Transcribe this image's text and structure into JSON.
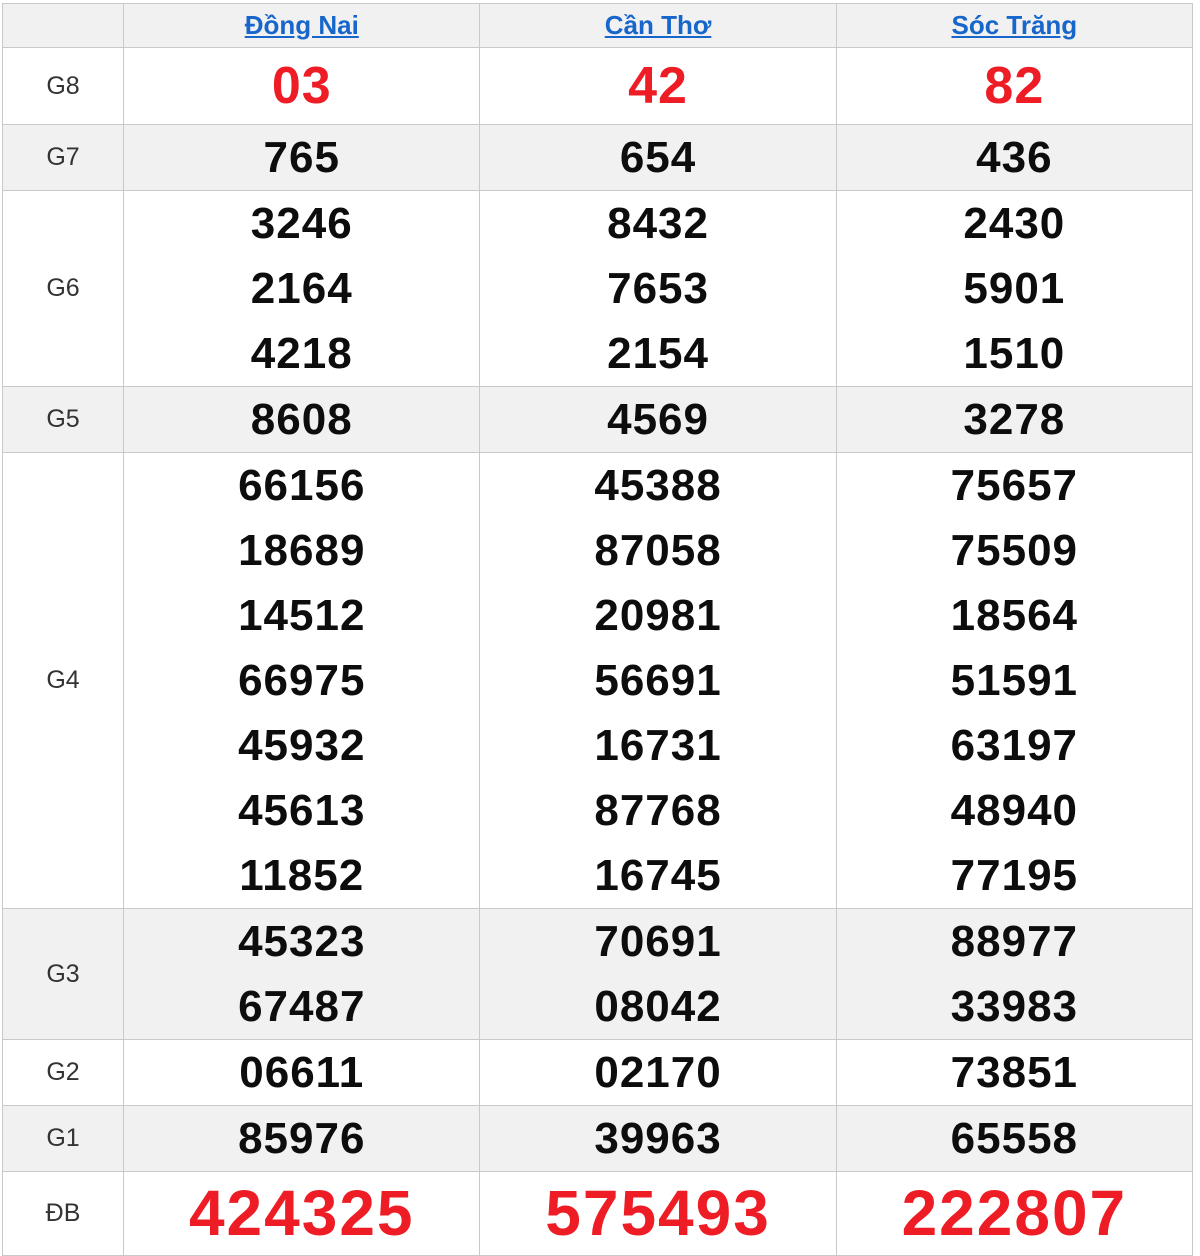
{
  "table": {
    "columns": [
      {
        "label": "Đồng Nai"
      },
      {
        "label": "Cần Thơ"
      },
      {
        "label": "Sóc Trăng"
      }
    ],
    "rows": [
      {
        "label": "G8",
        "type": "red-medium",
        "values": [
          [
            "03"
          ],
          [
            "42"
          ],
          [
            "82"
          ]
        ]
      },
      {
        "label": "G7",
        "type": "normal",
        "values": [
          [
            "765"
          ],
          [
            "654"
          ],
          [
            "436"
          ]
        ]
      },
      {
        "label": "G6",
        "type": "normal",
        "values": [
          [
            "3246",
            "2164",
            "4218"
          ],
          [
            "8432",
            "7653",
            "2154"
          ],
          [
            "2430",
            "5901",
            "1510"
          ]
        ]
      },
      {
        "label": "G5",
        "type": "normal",
        "values": [
          [
            "8608"
          ],
          [
            "4569"
          ],
          [
            "3278"
          ]
        ]
      },
      {
        "label": "G4",
        "type": "normal",
        "values": [
          [
            "66156",
            "18689",
            "14512",
            "66975",
            "45932",
            "45613",
            "11852"
          ],
          [
            "45388",
            "87058",
            "20981",
            "56691",
            "16731",
            "87768",
            "16745"
          ],
          [
            "75657",
            "75509",
            "18564",
            "51591",
            "63197",
            "48940",
            "77195"
          ]
        ]
      },
      {
        "label": "G3",
        "type": "normal",
        "values": [
          [
            "45323",
            "67487"
          ],
          [
            "70691",
            "08042"
          ],
          [
            "88977",
            "33983"
          ]
        ]
      },
      {
        "label": "G2",
        "type": "normal",
        "values": [
          [
            "06611"
          ],
          [
            "02170"
          ],
          [
            "73851"
          ]
        ]
      },
      {
        "label": "G1",
        "type": "normal",
        "values": [
          [
            "85976"
          ],
          [
            "39963"
          ],
          [
            "65558"
          ]
        ]
      },
      {
        "label": "ĐB",
        "type": "red-large",
        "values": [
          [
            "424325"
          ],
          [
            "575493"
          ],
          [
            "222807"
          ]
        ]
      }
    ],
    "colors": {
      "prize_red": "#ee1c25",
      "link_blue": "#1766cb",
      "alt_row_bg": "#f1f1f1",
      "border": "#c9c9c9",
      "number_text": "#0d0d0d"
    }
  }
}
